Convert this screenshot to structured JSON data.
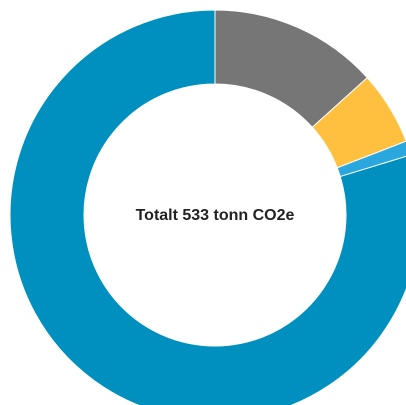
{
  "chart_data": {
    "type": "pie",
    "style": "donut",
    "center_label": "Totalt 533 tonn CO2e",
    "total": 533,
    "unit": "tonn CO2e",
    "slices": [
      {
        "value": 71,
        "color": "#767676"
      },
      {
        "value": 31,
        "color": "#FEC03E"
      },
      {
        "value": 6,
        "color": "#2BA7DF"
      },
      {
        "value": 425,
        "color": "#0090BF"
      }
    ]
  }
}
